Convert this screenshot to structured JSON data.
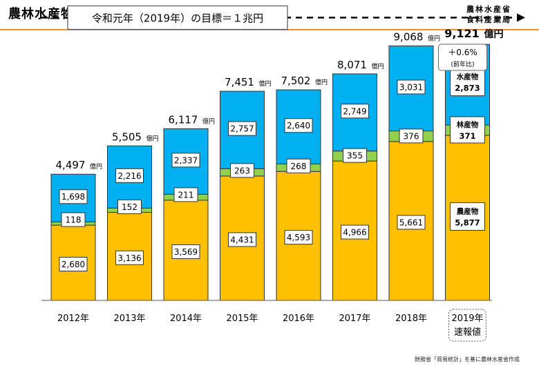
{
  "header": {
    "title": "農林水産物･食品 輸出額の推移",
    "ministry_line1": "農林水産省",
    "ministry_line2": "食料産業局"
  },
  "source": "財務省「貿易統計」を基に農林水産省作成",
  "chart_data": {
    "type": "bar",
    "stacked": true,
    "categories": [
      "2012年",
      "2013年",
      "2014年",
      "2015年",
      "2016年",
      "2017年",
      "2018年",
      "2019年"
    ],
    "last_category_sublabel": "速報値",
    "series": [
      {
        "name": "農産物",
        "values": [
          2680,
          3136,
          3569,
          4431,
          4593,
          4966,
          5661,
          5877
        ],
        "color": "#ffc000"
      },
      {
        "name": "林産物",
        "values": [
          118,
          152,
          211,
          263,
          268,
          355,
          376,
          371
        ],
        "color": "#92d050"
      },
      {
        "name": "水産物",
        "values": [
          1698,
          2216,
          2337,
          2757,
          2640,
          2749,
          3031,
          2873
        ],
        "color": "#00b0f0"
      }
    ],
    "segment_labels": {
      "農産物": [
        "2,680",
        "3,136",
        "3,569",
        "4,431",
        "4,593",
        "4,966",
        "5,661",
        "5,877"
      ],
      "林産物": [
        "118",
        "152",
        "211",
        "263",
        "268",
        "355",
        "376",
        "371"
      ],
      "水産物": [
        "1,698",
        "2,216",
        "2,337",
        "2,757",
        "2,640",
        "2,749",
        "3,031",
        "2,873"
      ]
    },
    "totals": [
      4497,
      5505,
      6117,
      7451,
      7502,
      8071,
      9068,
      9121
    ],
    "total_labels": [
      "4,497",
      "5,505",
      "6,117",
      "7,451",
      "7,502",
      "8,071",
      "9,068",
      "9,121"
    ],
    "total_unit": "億円",
    "target": {
      "label": "令和元年（2019年）の目標＝１兆円",
      "value": 10000
    },
    "annotation": {
      "line1": "＋0.6%",
      "line2": "(前年比)"
    },
    "ylim": [
      0,
      10000
    ]
  }
}
